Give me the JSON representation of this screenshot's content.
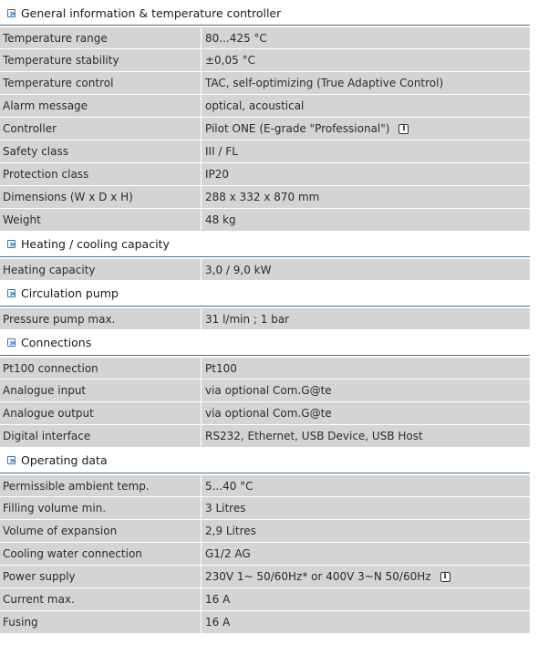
{
  "sections": [
    {
      "title": "General information & temperature controller",
      "rows": [
        {
          "label": "Temperature range",
          "value": "80...425 °C"
        },
        {
          "label": "Temperature stability",
          "value": "±0,05 °C"
        },
        {
          "label": "Temperature control",
          "value": "TAC, self-optimizing (True Adaptive Control)"
        },
        {
          "label": "Alarm message",
          "value": "optical, acoustical"
        },
        {
          "label": "Controller",
          "value": "Pilot ONE  (E-grade \"Professional\")",
          "info": true
        },
        {
          "label": "Safety class",
          "value": "III / FL"
        },
        {
          "label": "Protection class",
          "value": "IP20"
        },
        {
          "label": "Dimensions (W x D x H)",
          "value": "288 x 332 x 870 mm"
        },
        {
          "label": "Weight",
          "value": "48 kg"
        }
      ]
    },
    {
      "title": "Heating / cooling capacity",
      "rows": [
        {
          "label": "Heating capacity",
          "value": "3,0 / 9,0  kW"
        }
      ]
    },
    {
      "title": "Circulation pump",
      "rows": [
        {
          "label": "Pressure pump max.",
          "value": "31  l/min ; 1  bar"
        }
      ]
    },
    {
      "title": "Connections",
      "rows": [
        {
          "label": "Pt100 connection",
          "value": "Pt100"
        },
        {
          "label": "Analogue input",
          "value": "via optional Com.G@te"
        },
        {
          "label": "Analogue output",
          "value": "via optional Com.G@te"
        },
        {
          "label": "Digital interface",
          "value": "RS232, Ethernet, USB Device, USB Host"
        }
      ]
    },
    {
      "title": "Operating data",
      "rows": [
        {
          "label": "Permissible ambient temp.",
          "value": "5...40 °C"
        },
        {
          "label": "Filling volume min.",
          "value": "3 Litres"
        },
        {
          "label": "Volume of expansion",
          "value": "2,9 Litres"
        },
        {
          "label": "Cooling water connection",
          "value": "G1/2 AG"
        },
        {
          "label": "Power supply",
          "value": "230V 1~ 50/60Hz* or 400V 3~N 50/60Hz",
          "info": true
        },
        {
          "label": "Current max.",
          "value": "16 A"
        },
        {
          "label": "Fusing",
          "value": "16 A"
        }
      ]
    }
  ],
  "icons": {
    "section_marker": "expand-arrow-icon",
    "info": "info-icon"
  },
  "info_glyph": "i",
  "colors": {
    "row_bg": "#d4d4d4",
    "marker": "#2d74b8",
    "divider": "#4a6f8f"
  }
}
